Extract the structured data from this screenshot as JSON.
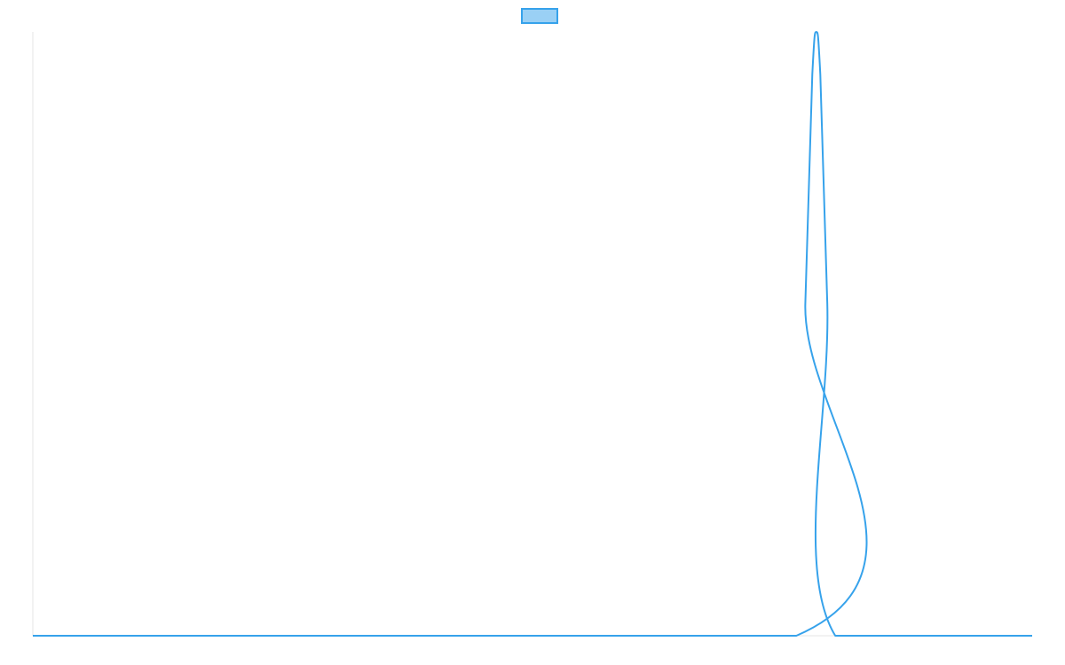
{
  "chart_data": {
    "type": "line",
    "title": "",
    "xlabel": "",
    "ylabel": "",
    "ylim": [
      0,
      1
    ],
    "grid": false,
    "legend": {
      "placement": "top-center",
      "entries": [
        {
          "name": "",
          "color": "#36a2eb",
          "fill": "#9ad0f5"
        }
      ]
    },
    "series": [
      {
        "name": "",
        "color": "#36a2eb",
        "points": [
          {
            "x": 0.0,
            "y": 0.0
          },
          {
            "x": 0.764,
            "y": 0.0
          },
          {
            "x": 0.773,
            "y": 0.55
          },
          {
            "x": 0.78,
            "y": 0.93
          },
          {
            "x": 0.784,
            "y": 1.0
          },
          {
            "x": 0.788,
            "y": 0.93
          },
          {
            "x": 0.795,
            "y": 0.55
          },
          {
            "x": 0.803,
            "y": 0.0
          },
          {
            "x": 1.0,
            "y": 0.0
          }
        ]
      }
    ]
  }
}
